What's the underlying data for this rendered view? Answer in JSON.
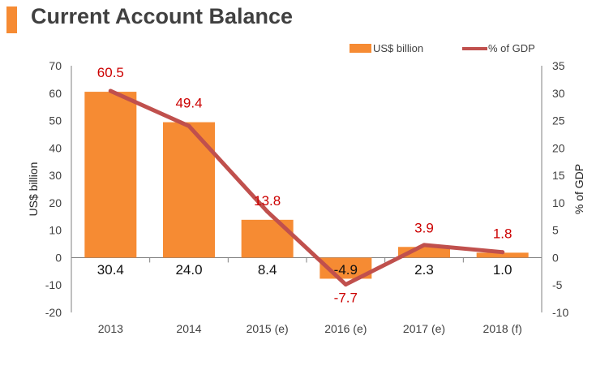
{
  "header": {
    "title": "Current Account Balance"
  },
  "colors": {
    "bar": "#f68b33",
    "line": "#c0504d",
    "pct_label": "#cc0000",
    "axis": "#808080",
    "text": "#404040",
    "accent": "#f68b33"
  },
  "chart_data": {
    "type": "bar",
    "categories": [
      "2013",
      "2014",
      "2015 (e)",
      "2016 (e)",
      "2017 (e)",
      "2018 (f)"
    ],
    "series": [
      {
        "name": "US$ billion",
        "type": "bar",
        "axis": "left",
        "values": [
          60.5,
          49.4,
          13.8,
          -7.7,
          3.9,
          1.8
        ]
      },
      {
        "name": "% of GDP",
        "type": "line",
        "axis": "right",
        "values": [
          30.4,
          24.0,
          8.4,
          -4.9,
          2.3,
          1.0
        ]
      }
    ],
    "bar_labels": [
      "60.5",
      "49.4",
      "13.8",
      "-7.7",
      "3.9",
      "1.8"
    ],
    "line_labels": [
      "30.4",
      "24.0",
      "8.4",
      "-4.9",
      "2.3",
      "1.0"
    ],
    "ylabel": "US$ billion",
    "y2label": "% of GDP",
    "ylim": [
      -20,
      70
    ],
    "y2lim": [
      -10,
      35
    ],
    "yticks": [
      "70",
      "60",
      "50",
      "40",
      "30",
      "20",
      "10",
      "0",
      "-10",
      "-20"
    ],
    "y2ticks": [
      "35",
      "30",
      "25",
      "20",
      "15",
      "10",
      "5",
      "0",
      "-5",
      "-10"
    ],
    "legend_position": "top-right",
    "grid": false
  }
}
